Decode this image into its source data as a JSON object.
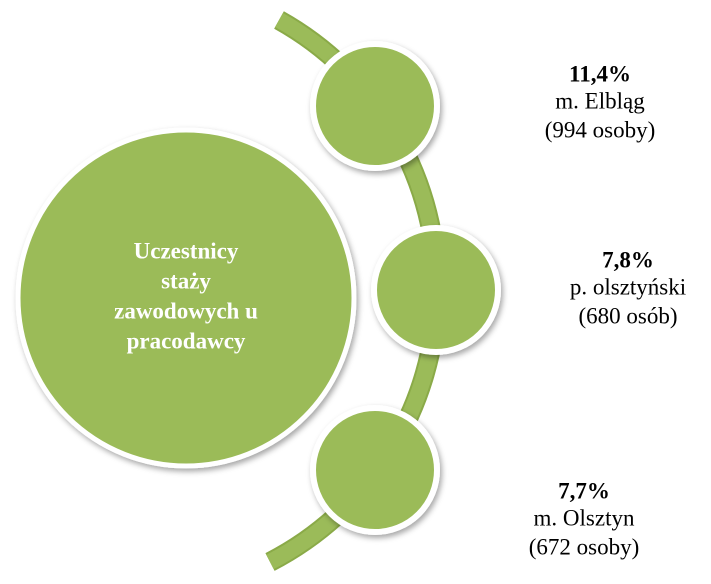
{
  "center": {
    "lines": [
      "Uczestnicy",
      "staży",
      "zawodowych u",
      "pracodawcy"
    ]
  },
  "items": [
    {
      "percent": "11,4%",
      "name": "m. Elbląg",
      "count": "(994 osoby)"
    },
    {
      "percent": "7,8%",
      "name": "p. olsztyński",
      "count": "(680 osób)"
    },
    {
      "percent": "7,7%",
      "name": "m. Olsztyn",
      "count": "(672 osoby)"
    }
  ]
}
